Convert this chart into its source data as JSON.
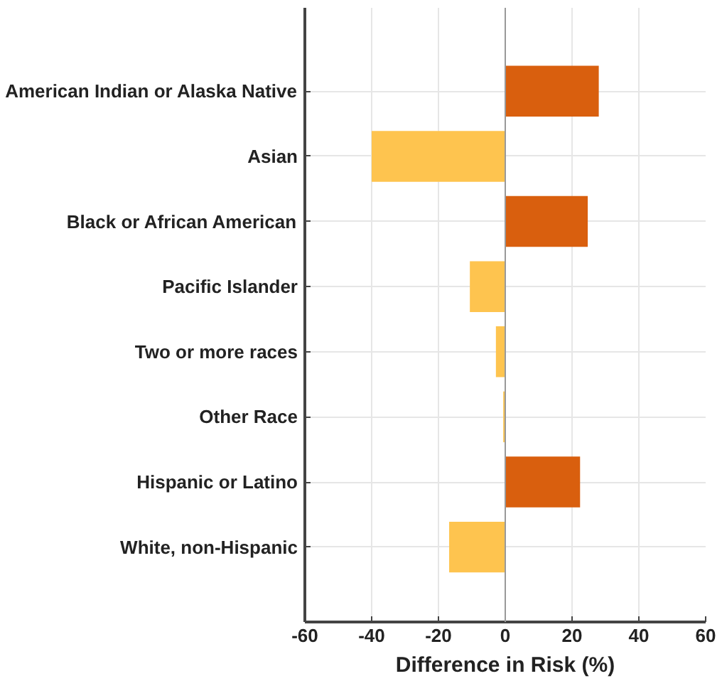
{
  "chart_data": {
    "type": "bar",
    "orientation": "horizontal",
    "xlabel": "Difference in Risk (%)",
    "categories": [
      "American Indian or Alaska Native",
      "Asian",
      "Black or African American",
      "Pacific Islander",
      "Two or more races",
      "Other Race",
      "Hispanic or Latino",
      "White, non-Hispanic"
    ],
    "values": [
      28,
      -40,
      24.7,
      -10.6,
      -2.8,
      -0.6,
      22.4,
      -16.8
    ],
    "colors": [
      "#d95f0e",
      "#fec44f",
      "#d95f0e",
      "#fec44f",
      "#fec44f",
      "#fec44f",
      "#d95f0e",
      "#fec44f"
    ],
    "xlim": [
      -60,
      60
    ],
    "xticks": [
      -60,
      -40,
      -20,
      0,
      20,
      40,
      60
    ],
    "grid": true
  }
}
